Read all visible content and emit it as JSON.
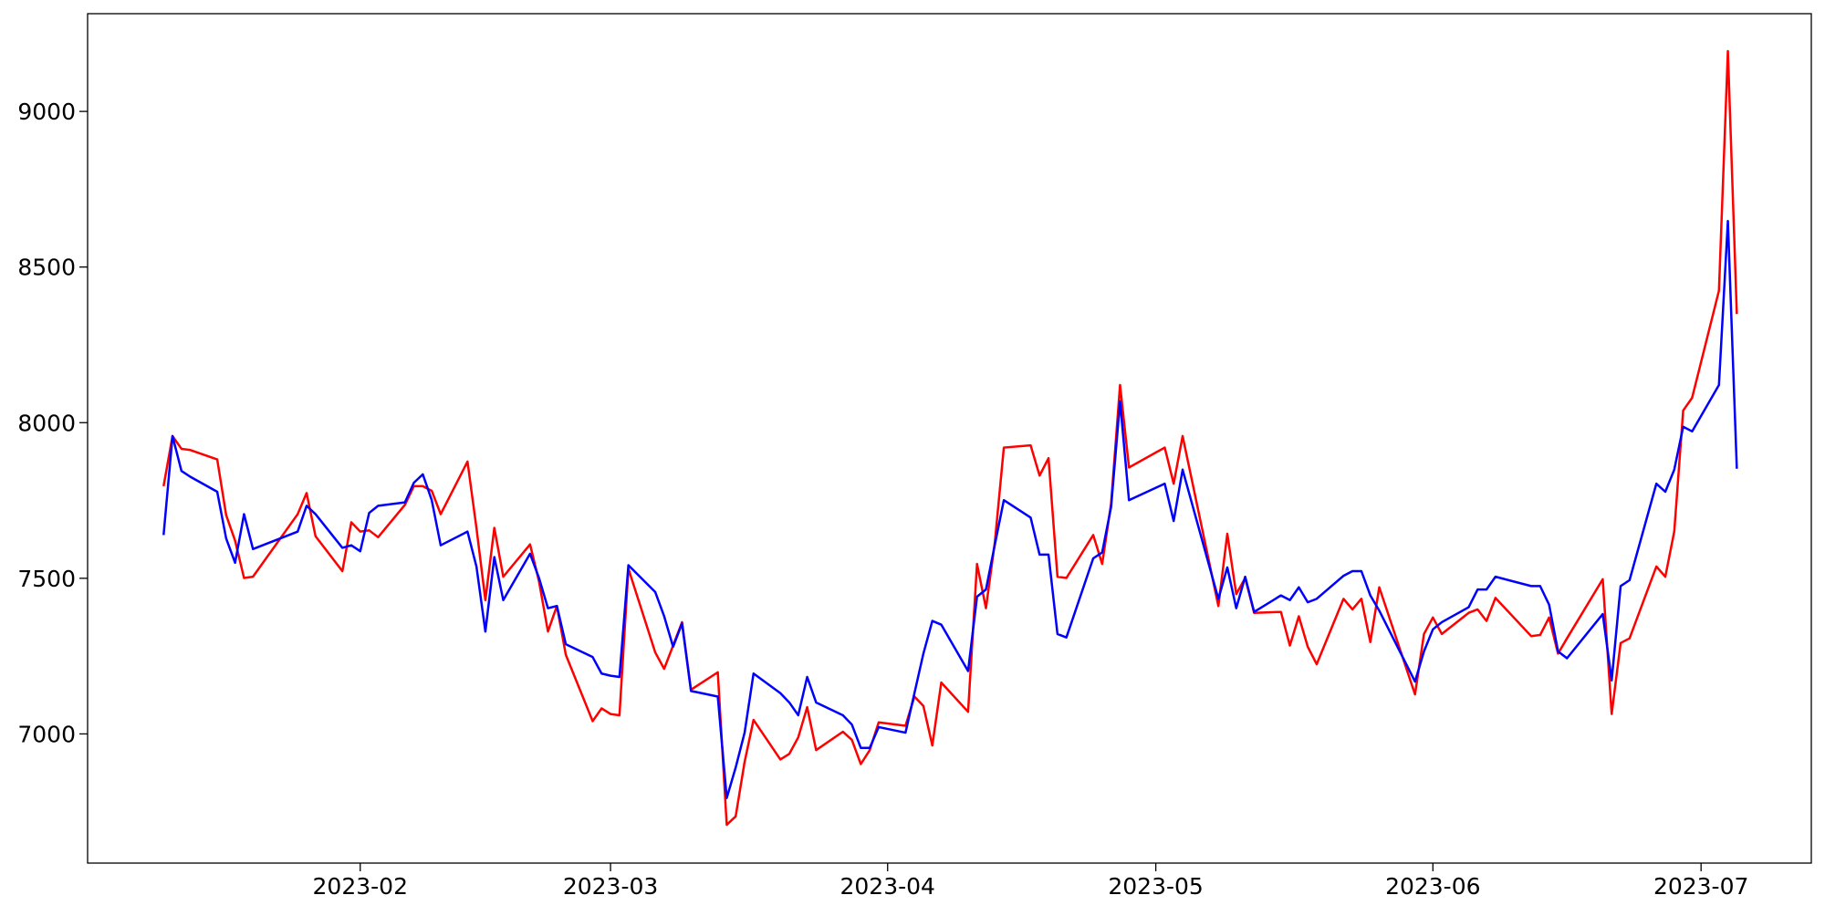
{
  "chart_data": {
    "type": "line",
    "x": [
      "2023-01-10",
      "2023-01-11",
      "2023-01-12",
      "2023-01-13",
      "2023-01-16",
      "2023-01-17",
      "2023-01-18",
      "2023-01-19",
      "2023-01-20",
      "2023-01-25",
      "2023-01-26",
      "2023-01-27",
      "2023-01-30",
      "2023-01-31",
      "2023-02-01",
      "2023-02-02",
      "2023-02-03",
      "2023-02-06",
      "2023-02-07",
      "2023-02-08",
      "2023-02-09",
      "2023-02-10",
      "2023-02-13",
      "2023-02-14",
      "2023-02-15",
      "2023-02-16",
      "2023-02-17",
      "2023-02-20",
      "2023-02-21",
      "2023-02-22",
      "2023-02-23",
      "2023-02-24",
      "2023-02-27",
      "2023-02-28",
      "2023-03-01",
      "2023-03-02",
      "2023-03-03",
      "2023-03-06",
      "2023-03-07",
      "2023-03-08",
      "2023-03-09",
      "2023-03-10",
      "2023-03-13",
      "2023-03-14",
      "2023-03-15",
      "2023-03-16",
      "2023-03-17",
      "2023-03-20",
      "2023-03-21",
      "2023-03-22",
      "2023-03-23",
      "2023-03-24",
      "2023-03-27",
      "2023-03-28",
      "2023-03-29",
      "2023-03-30",
      "2023-03-31",
      "2023-04-03",
      "2023-04-04",
      "2023-04-05",
      "2023-04-06",
      "2023-04-07",
      "2023-04-10",
      "2023-04-11",
      "2023-04-12",
      "2023-04-13",
      "2023-04-14",
      "2023-04-17",
      "2023-04-18",
      "2023-04-19",
      "2023-04-20",
      "2023-04-21",
      "2023-04-24",
      "2023-04-25",
      "2023-04-26",
      "2023-04-27",
      "2023-04-28",
      "2023-05-02",
      "2023-05-03",
      "2023-05-04",
      "2023-05-08",
      "2023-05-09",
      "2023-05-10",
      "2023-05-11",
      "2023-05-12",
      "2023-05-15",
      "2023-05-16",
      "2023-05-17",
      "2023-05-18",
      "2023-05-19",
      "2023-05-22",
      "2023-05-23",
      "2023-05-24",
      "2023-05-25",
      "2023-05-26",
      "2023-05-30",
      "2023-05-31",
      "2023-06-01",
      "2023-06-02",
      "2023-06-05",
      "2023-06-06",
      "2023-06-07",
      "2023-06-08",
      "2023-06-12",
      "2023-06-13",
      "2023-06-14",
      "2023-06-15",
      "2023-06-16",
      "2023-06-20",
      "2023-06-21",
      "2023-06-22",
      "2023-06-23",
      "2023-06-26",
      "2023-06-27",
      "2023-06-28",
      "2023-06-29",
      "2023-06-30",
      "2023-07-03",
      "2023-07-04",
      "2023-07-05"
    ],
    "series": [
      {
        "color": "red",
        "values": [
          7796,
          7957,
          7916,
          7912,
          7882,
          7703,
          7621,
          7501,
          7505,
          7706,
          7774,
          7635,
          7523,
          7680,
          7650,
          7654,
          7632,
          7736,
          7796,
          7796,
          7781,
          7706,
          7875,
          7662,
          7430,
          7662,
          7505,
          7609,
          7490,
          7329,
          7411,
          7254,
          7041,
          7082,
          7064,
          7060,
          7531,
          7262,
          7209,
          7284,
          7359,
          7142,
          7198,
          6708,
          6735,
          6910,
          7045,
          6918,
          6936,
          6989,
          7086,
          6948,
          7007,
          6981,
          6903,
          6948,
          7037,
          7026,
          7120,
          7090,
          6963,
          7165,
          7071,
          7546,
          7404,
          7617,
          7920,
          7927,
          7830,
          7886,
          7505,
          7501,
          7639,
          7546,
          7740,
          8121,
          7856,
          7920,
          7804,
          7957,
          7411,
          7643,
          7449,
          7501,
          7389,
          7392,
          7284,
          7378,
          7280,
          7224,
          7434,
          7400,
          7434,
          7295,
          7471,
          7127,
          7321,
          7374,
          7321,
          7389,
          7400,
          7363,
          7437,
          7314,
          7318,
          7374,
          7258,
          7307,
          7497,
          7064,
          7292,
          7307,
          7538,
          7505,
          7650,
          8039,
          8080,
          8424,
          9194,
          8349
        ]
      },
      {
        "color": "blue",
        "values": [
          7639,
          7957,
          7845,
          7826,
          7778,
          7628,
          7550,
          7706,
          7594,
          7650,
          7733,
          7706,
          7598,
          7606,
          7587,
          7710,
          7733,
          7744,
          7807,
          7834,
          7751,
          7606,
          7650,
          7538,
          7329,
          7568,
          7430,
          7579,
          7501,
          7404,
          7411,
          7288,
          7247,
          7194,
          7187,
          7183,
          7542,
          7456,
          7378,
          7280,
          7355,
          7138,
          7120,
          6794,
          6892,
          7004,
          7194,
          7131,
          7101,
          7060,
          7183,
          7101,
          7060,
          7030,
          6955,
          6955,
          7022,
          7004,
          7131,
          7258,
          7363,
          7351,
          7202,
          7441,
          7464,
          7609,
          7751,
          7695,
          7576,
          7576,
          7321,
          7310,
          7564,
          7583,
          7729,
          8069,
          7751,
          7804,
          7684,
          7849,
          7434,
          7535,
          7404,
          7505,
          7392,
          7445,
          7430,
          7471,
          7423,
          7434,
          7508,
          7523,
          7523,
          7445,
          7396,
          7168,
          7265,
          7336,
          7359,
          7407,
          7464,
          7464,
          7505,
          7475,
          7475,
          7415,
          7265,
          7243,
          7385,
          7172,
          7475,
          7494,
          7804,
          7778,
          7849,
          7987,
          7972,
          8121,
          8648,
          7852
        ]
      }
    ],
    "xlim": [
      "2023-01-01T12:00",
      "2023-07-13T08:00"
    ],
    "xticks": [
      {
        "value": "2023-02-01",
        "label": "2023-02"
      },
      {
        "value": "2023-03-01",
        "label": "2023-03"
      },
      {
        "value": "2023-04-01",
        "label": "2023-04"
      },
      {
        "value": "2023-05-01",
        "label": "2023-05"
      },
      {
        "value": "2023-06-01",
        "label": "2023-06"
      },
      {
        "value": "2023-07-01",
        "label": "2023-07"
      }
    ],
    "ylim": [
      6585,
      9314
    ],
    "yticks": [
      7000,
      7500,
      8000,
      8500,
      9000
    ],
    "grid": false
  }
}
